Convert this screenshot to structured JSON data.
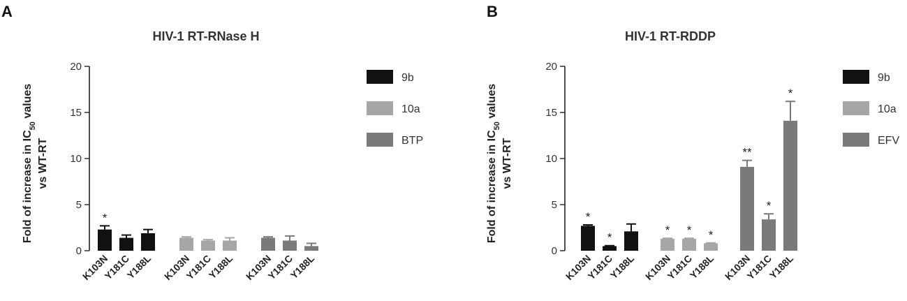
{
  "chart_data": [
    {
      "panel": "A",
      "type": "bar",
      "title": "HIV-1 RT-RNase H",
      "ylabel": "Fold of increase in IC50 values vs WT-RT",
      "ylabel_lines": [
        "Fold of increase in IC",
        "50",
        " values",
        "vs WT-RT"
      ],
      "ylim": [
        0,
        20
      ],
      "yticks": [
        0,
        5,
        10,
        15,
        20
      ],
      "legend_position": "right",
      "series": [
        {
          "name": "9b",
          "color": "#111111",
          "categories": [
            "K103N",
            "Y181C",
            "Y188L"
          ],
          "values": [
            2.3,
            1.4,
            1.9
          ],
          "errors": [
            0.4,
            0.3,
            0.4
          ],
          "annotations": [
            "*",
            "",
            ""
          ]
        },
        {
          "name": "10a",
          "color": "#a6a6a6",
          "categories": [
            "K103N",
            "Y181C",
            "Y188L"
          ],
          "values": [
            1.4,
            1.1,
            1.1
          ],
          "errors": [
            0.1,
            0.1,
            0.3
          ],
          "annotations": [
            "",
            "",
            ""
          ]
        },
        {
          "name": "BTP",
          "color": "#7a7a7a",
          "categories": [
            "K103N",
            "Y181C",
            "Y188L"
          ],
          "values": [
            1.4,
            1.1,
            0.5
          ],
          "errors": [
            0.1,
            0.5,
            0.3
          ],
          "annotations": [
            "",
            "",
            ""
          ]
        }
      ]
    },
    {
      "panel": "B",
      "type": "bar",
      "title": "HIV-1 RT-RDDP",
      "ylabel": "Fold of increase in IC50 values vs WT-RT",
      "ylabel_lines": [
        "Fold of increase in IC",
        "50",
        " values",
        "vs WT-RT"
      ],
      "ylim": [
        0,
        20
      ],
      "yticks": [
        0,
        5,
        10,
        15,
        20
      ],
      "legend_position": "right",
      "series": [
        {
          "name": "9b",
          "color": "#111111",
          "categories": [
            "K103N",
            "Y181C",
            "Y188L"
          ],
          "values": [
            2.7,
            0.5,
            2.1
          ],
          "errors": [
            0.1,
            0.05,
            0.8
          ],
          "annotations": [
            "*",
            "*",
            ""
          ]
        },
        {
          "name": "10a",
          "color": "#a6a6a6",
          "categories": [
            "K103N",
            "Y181C",
            "Y188L"
          ],
          "values": [
            1.3,
            1.3,
            0.8
          ],
          "errors": [
            0.05,
            0.05,
            0.05
          ],
          "annotations": [
            "*",
            "*",
            "*"
          ]
        },
        {
          "name": "EFV",
          "color": "#7a7a7a",
          "categories": [
            "K103N",
            "Y181C",
            "Y188L"
          ],
          "values": [
            9.1,
            3.4,
            14.1
          ],
          "errors": [
            0.7,
            0.6,
            2.1
          ],
          "annotations": [
            "**",
            "*",
            "*"
          ]
        }
      ]
    }
  ]
}
